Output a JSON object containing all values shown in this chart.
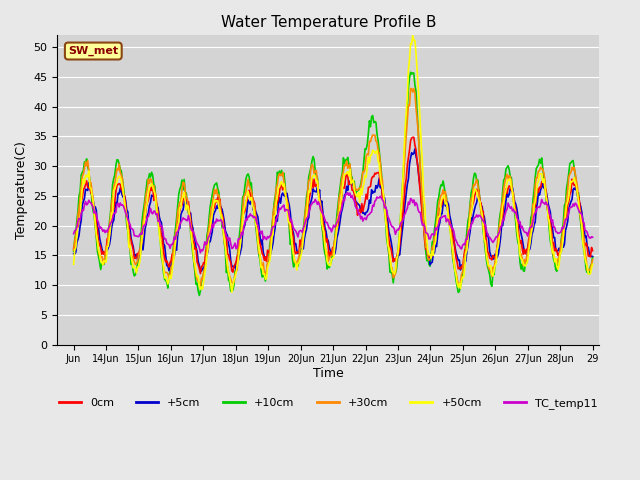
{
  "title": "Water Temperature Profile B",
  "xlabel": "Time",
  "ylabel": "Temperature(C)",
  "annotation": "SW_met",
  "ylim": [
    0,
    52
  ],
  "yticks": [
    0,
    5,
    10,
    15,
    20,
    25,
    30,
    35,
    40,
    45,
    50
  ],
  "bg_color": "#e8e8e8",
  "plot_bg_color": "#d4d4d4",
  "series": {
    "0cm": {
      "color": "#ff0000",
      "lw": 1.2
    },
    "+5cm": {
      "color": "#0000cc",
      "lw": 1.2
    },
    "+10cm": {
      "color": "#00cc00",
      "lw": 1.2
    },
    "+30cm": {
      "color": "#ff8800",
      "lw": 1.2
    },
    "+50cm": {
      "color": "#ffff00",
      "lw": 1.2
    },
    "TC_temp11": {
      "color": "#cc00cc",
      "lw": 1.2
    }
  },
  "xtick_positions": [
    13,
    14,
    15,
    16,
    17,
    18,
    19,
    20,
    21,
    22,
    23,
    24,
    25,
    26,
    27,
    28,
    29
  ],
  "xtick_labels": [
    "Jun",
    "14Jun",
    "15Jun",
    "16Jun",
    "17Jun",
    "18Jun",
    "19Jun",
    "20Jun",
    "21Jun",
    "22Jun",
    "23Jun",
    "24Jun",
    "25Jun",
    "26Jun",
    "27Jun",
    "28Jun",
    "29"
  ],
  "n_points": 480,
  "x_start": 13,
  "x_end": 29
}
